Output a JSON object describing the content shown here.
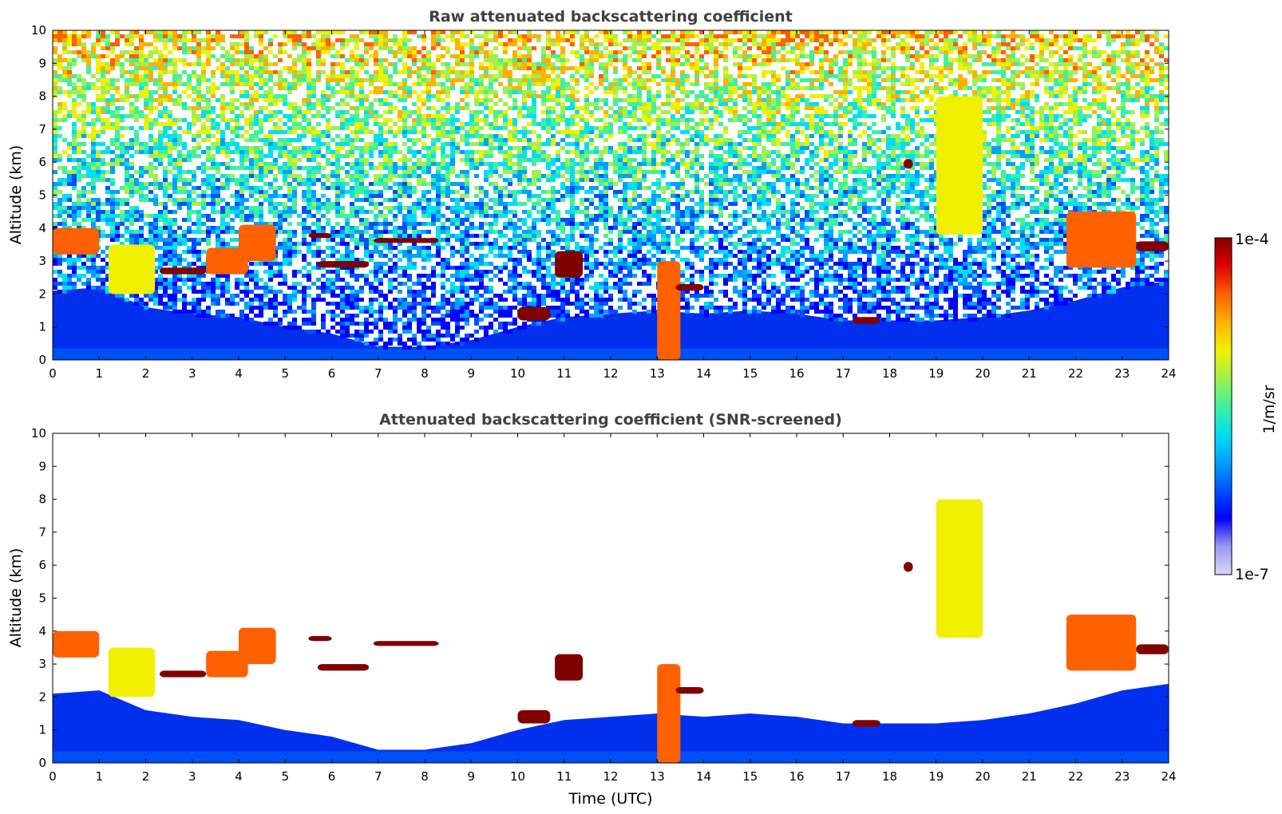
{
  "chart_data": [
    {
      "type": "heatmap",
      "title": "Raw attenuated backscattering coefficient",
      "xlabel": "",
      "ylabel": "Altitude (km)",
      "xlim": [
        0,
        24
      ],
      "ylim": [
        0,
        10
      ],
      "x_ticks": [
        0,
        1,
        2,
        3,
        4,
        5,
        6,
        7,
        8,
        9,
        10,
        11,
        12,
        13,
        14,
        15,
        16,
        17,
        18,
        19,
        20,
        21,
        22,
        23,
        24
      ],
      "y_ticks": [
        0,
        1,
        2,
        3,
        4,
        5,
        6,
        7,
        8,
        9,
        10
      ],
      "grid": false,
      "layers": [
        {
          "time": [
            0.0,
            1.0
          ],
          "alt": [
            3.2,
            4.0
          ],
          "value": "high"
        },
        {
          "time": [
            1.2,
            2.2
          ],
          "alt": [
            2.0,
            3.5
          ],
          "value": "mid"
        },
        {
          "time": [
            2.3,
            3.3
          ],
          "alt": [
            2.6,
            2.8
          ],
          "value": "very-high"
        },
        {
          "time": [
            3.3,
            4.2
          ],
          "alt": [
            2.6,
            3.4
          ],
          "value": "high"
        },
        {
          "time": [
            4.0,
            4.8
          ],
          "alt": [
            3.0,
            4.1
          ],
          "value": "high"
        },
        {
          "time": [
            5.5,
            6.0
          ],
          "alt": [
            3.7,
            3.85
          ],
          "value": "very-high"
        },
        {
          "time": [
            5.7,
            6.8
          ],
          "alt": [
            2.8,
            3.0
          ],
          "value": "very-high"
        },
        {
          "time": [
            6.9,
            8.3
          ],
          "alt": [
            3.55,
            3.7
          ],
          "value": "very-high"
        },
        {
          "time": [
            10.0,
            10.7
          ],
          "alt": [
            1.2,
            1.6
          ],
          "value": "very-high"
        },
        {
          "time": [
            10.8,
            11.4
          ],
          "alt": [
            2.5,
            3.3
          ],
          "value": "very-high"
        },
        {
          "time": [
            13.0,
            13.5
          ],
          "alt": [
            0.0,
            3.0
          ],
          "value": "high"
        },
        {
          "time": [
            13.4,
            14.0
          ],
          "alt": [
            2.1,
            2.3
          ],
          "value": "very-high"
        },
        {
          "time": [
            17.2,
            17.8
          ],
          "alt": [
            1.1,
            1.3
          ],
          "value": "very-high"
        },
        {
          "time": [
            18.3,
            18.5
          ],
          "alt": [
            5.8,
            6.1
          ],
          "value": "very-high"
        },
        {
          "time": [
            19.0,
            20.0
          ],
          "alt": [
            3.8,
            8.0
          ],
          "value": "mid"
        },
        {
          "time": [
            21.8,
            23.3
          ],
          "alt": [
            2.8,
            4.5
          ],
          "value": "high"
        },
        {
          "time": [
            23.3,
            24.0
          ],
          "alt": [
            3.3,
            3.6
          ],
          "value": "very-high"
        }
      ],
      "boundary_layer": [
        [
          0,
          2.1
        ],
        [
          1,
          2.2
        ],
        [
          2,
          1.6
        ],
        [
          3,
          1.4
        ],
        [
          4,
          1.3
        ],
        [
          5,
          1.0
        ],
        [
          6,
          0.8
        ],
        [
          7,
          0.4
        ],
        [
          8,
          0.4
        ],
        [
          9,
          0.6
        ],
        [
          10,
          1.0
        ],
        [
          11,
          1.3
        ],
        [
          12,
          1.4
        ],
        [
          13,
          1.5
        ],
        [
          14,
          1.4
        ],
        [
          15,
          1.5
        ],
        [
          16,
          1.4
        ],
        [
          17,
          1.2
        ],
        [
          18,
          1.2
        ],
        [
          19,
          1.2
        ],
        [
          20,
          1.3
        ],
        [
          21,
          1.5
        ],
        [
          22,
          1.8
        ],
        [
          23,
          2.2
        ],
        [
          24,
          2.4
        ]
      ]
    },
    {
      "type": "heatmap",
      "title": "Attenuated backscattering coefficient (SNR-screened)",
      "xlabel": "Time (UTC)",
      "ylabel": "Altitude (km)",
      "xlim": [
        0,
        24
      ],
      "ylim": [
        0,
        10
      ],
      "x_ticks": [
        0,
        1,
        2,
        3,
        4,
        5,
        6,
        7,
        8,
        9,
        10,
        11,
        12,
        13,
        14,
        15,
        16,
        17,
        18,
        19,
        20,
        21,
        22,
        23,
        24
      ],
      "y_ticks": [
        0,
        1,
        2,
        3,
        4,
        5,
        6,
        7,
        8,
        9,
        10
      ],
      "grid": false,
      "screened": true
    }
  ],
  "colorbar": {
    "label": "1/m/sr",
    "max_label": "1e-4",
    "min_label": "1e-7",
    "min": 1e-07,
    "max": 0.0001,
    "scale": "log",
    "colormap": [
      "#d8d8f8",
      "#9a9af2",
      "#0000ff",
      "#0050ff",
      "#00a0ff",
      "#00e0f0",
      "#40f0a0",
      "#a0f050",
      "#f0f000",
      "#ffb000",
      "#ff6000",
      "#e00000",
      "#800000"
    ]
  }
}
